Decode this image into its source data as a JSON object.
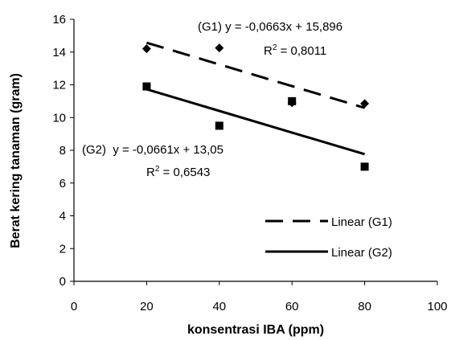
{
  "chart_data": {
    "type": "scatter",
    "xlabel": "konsentrasi IBA (ppm)",
    "ylabel": "Berat kering tanaman  (gram)",
    "xlim": [
      0,
      100
    ],
    "ylim": [
      0,
      16
    ],
    "xticks": [
      0,
      20,
      40,
      60,
      80,
      100
    ],
    "yticks": [
      0,
      2,
      4,
      6,
      8,
      10,
      12,
      14,
      16
    ],
    "grid": false,
    "legend_position": "bottom-right",
    "series": [
      {
        "name": "G1",
        "marker": "diamond",
        "x": [
          20,
          40,
          60,
          80
        ],
        "y": [
          14.2,
          14.25,
          10.9,
          10.85
        ],
        "trendline": {
          "legend_label": "Linear (G1)",
          "style": "dashed",
          "slope": -0.0663,
          "intercept": 15.896,
          "x_range": [
            20,
            80
          ],
          "equation": "(G1) y = -0,0663x + 15,896",
          "r2_label": "R",
          "r2_value": " = 0,8011"
        }
      },
      {
        "name": "G2",
        "marker": "square",
        "x": [
          20,
          40,
          60,
          80
        ],
        "y": [
          11.9,
          9.5,
          11.0,
          7.0
        ],
        "trendline": {
          "legend_label": "Linear (G2)",
          "style": "solid",
          "slope": -0.0661,
          "intercept": 13.05,
          "x_range": [
            20,
            80
          ],
          "equation": "(G2)  y = -0,0661x + 13,05",
          "r2_label": "R",
          "r2_value": " = 0,6543"
        }
      }
    ]
  }
}
